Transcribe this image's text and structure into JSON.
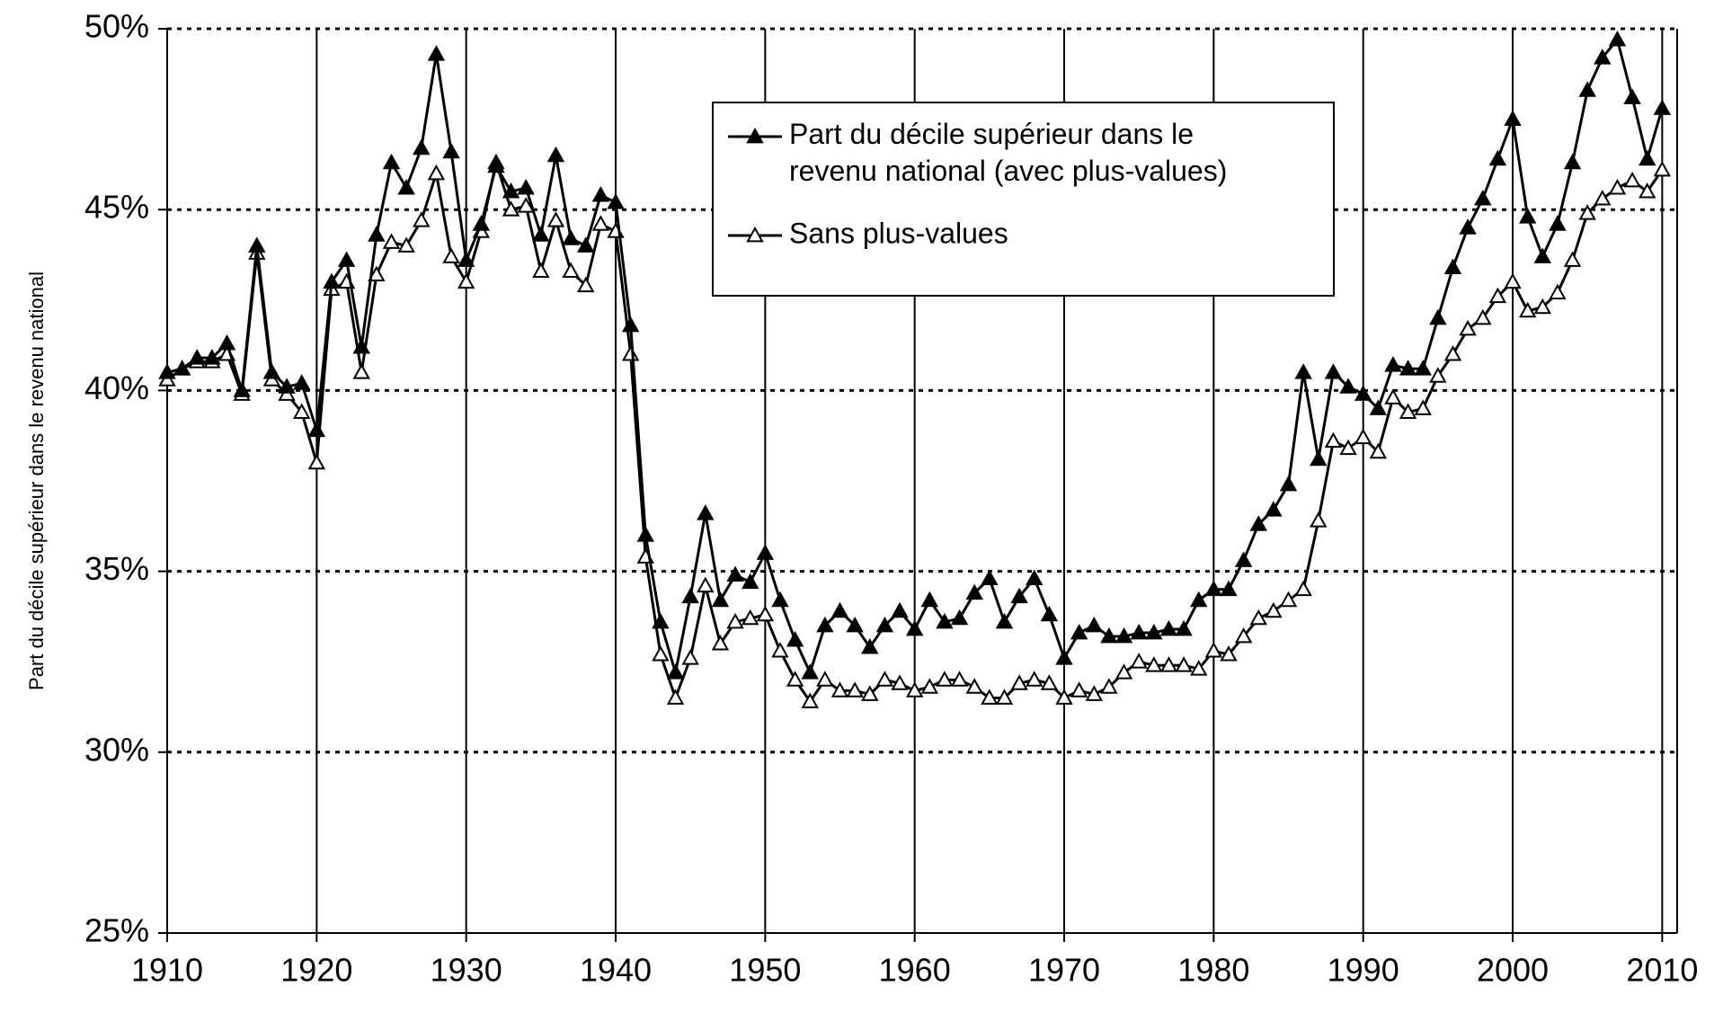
{
  "chart_data": {
    "type": "line",
    "y_label": "Part du décile supérieur dans le revenu national",
    "x": [
      1910,
      1911,
      1912,
      1913,
      1914,
      1915,
      1916,
      1917,
      1918,
      1919,
      1920,
      1921,
      1922,
      1923,
      1924,
      1925,
      1926,
      1927,
      1928,
      1929,
      1930,
      1931,
      1932,
      1933,
      1934,
      1935,
      1936,
      1937,
      1938,
      1939,
      1940,
      1941,
      1942,
      1943,
      1944,
      1945,
      1946,
      1947,
      1948,
      1949,
      1950,
      1951,
      1952,
      1953,
      1954,
      1955,
      1956,
      1957,
      1958,
      1959,
      1960,
      1961,
      1962,
      1963,
      1964,
      1965,
      1966,
      1967,
      1968,
      1969,
      1970,
      1971,
      1972,
      1973,
      1974,
      1975,
      1976,
      1977,
      1978,
      1979,
      1980,
      1981,
      1982,
      1983,
      1984,
      1985,
      1986,
      1987,
      1988,
      1989,
      1990,
      1991,
      1992,
      1993,
      1994,
      1995,
      1996,
      1997,
      1998,
      1999,
      2000,
      2001,
      2002,
      2003,
      2004,
      2005,
      2006,
      2007,
      2008,
      2009,
      2010
    ],
    "series": [
      {
        "name": "Part du décile supérieur dans le revenu national (avec plus-values)",
        "color": "#000000",
        "marker": "filled-triangle",
        "values": [
          40.5,
          40.6,
          40.9,
          40.9,
          41.3,
          40.0,
          44.0,
          40.5,
          40.1,
          40.2,
          38.9,
          43.0,
          43.6,
          41.2,
          44.3,
          46.3,
          45.6,
          46.7,
          49.3,
          46.6,
          43.6,
          44.6,
          46.2,
          45.5,
          45.6,
          44.3,
          46.5,
          44.2,
          44.0,
          45.4,
          45.2,
          41.8,
          36.0,
          33.6,
          32.2,
          34.3,
          36.6,
          34.2,
          34.9,
          34.7,
          35.5,
          34.2,
          33.1,
          32.2,
          33.5,
          33.9,
          33.5,
          32.9,
          33.5,
          33.9,
          33.4,
          34.2,
          33.6,
          33.7,
          34.4,
          34.8,
          33.6,
          34.3,
          34.8,
          33.8,
          32.6,
          33.3,
          33.5,
          33.2,
          33.2,
          33.3,
          33.3,
          33.4,
          33.4,
          34.2,
          34.5,
          34.5,
          35.3,
          36.3,
          36.7,
          37.4,
          40.5,
          38.1,
          40.5,
          40.1,
          39.9,
          39.5,
          40.7,
          40.6,
          40.6,
          42.0,
          43.4,
          44.5,
          45.3,
          46.4,
          47.5,
          44.8,
          43.7,
          44.6,
          46.3,
          48.3,
          49.2,
          49.7,
          48.1,
          46.4,
          47.8
        ]
      },
      {
        "name": "Sans plus-values",
        "color": "#000000",
        "marker": "open-triangle",
        "values": [
          40.3,
          40.6,
          40.8,
          40.8,
          41.0,
          39.9,
          43.8,
          40.3,
          39.9,
          39.4,
          38.0,
          42.8,
          43.0,
          40.5,
          43.2,
          44.1,
          44.0,
          44.7,
          46.0,
          43.7,
          43.0,
          44.4,
          46.3,
          45.0,
          45.1,
          43.3,
          44.7,
          43.3,
          42.9,
          44.6,
          44.4,
          41.0,
          35.4,
          32.7,
          31.5,
          32.6,
          34.6,
          33.0,
          33.6,
          33.7,
          33.8,
          32.8,
          32.0,
          31.4,
          32.0,
          31.7,
          31.7,
          31.6,
          32.0,
          31.9,
          31.7,
          31.8,
          32.0,
          32.0,
          31.8,
          31.5,
          31.5,
          31.9,
          32.0,
          31.9,
          31.5,
          31.7,
          31.6,
          31.8,
          32.2,
          32.5,
          32.4,
          32.4,
          32.4,
          32.3,
          32.8,
          32.7,
          33.2,
          33.7,
          33.9,
          34.2,
          34.5,
          36.4,
          38.6,
          38.4,
          38.7,
          38.3,
          39.8,
          39.4,
          39.5,
          40.4,
          41.0,
          41.7,
          42.0,
          42.6,
          43.0,
          42.2,
          42.3,
          42.7,
          43.6,
          44.9,
          45.3,
          45.6,
          45.8,
          45.5,
          46.1
        ]
      }
    ],
    "xlim": [
      1910,
      2011
    ],
    "xticks": [
      1910,
      1920,
      1930,
      1940,
      1950,
      1960,
      1970,
      1980,
      1990,
      2000,
      2010
    ],
    "ylim": [
      25,
      50
    ],
    "yticks": [
      {
        "value": 25,
        "label": "25%"
      },
      {
        "value": 30,
        "label": "30%"
      },
      {
        "value": 35,
        "label": "35%"
      },
      {
        "value": 40,
        "label": "40%"
      },
      {
        "value": 45,
        "label": "45%"
      },
      {
        "value": 50,
        "label": "50%"
      }
    ],
    "grid": true
  }
}
